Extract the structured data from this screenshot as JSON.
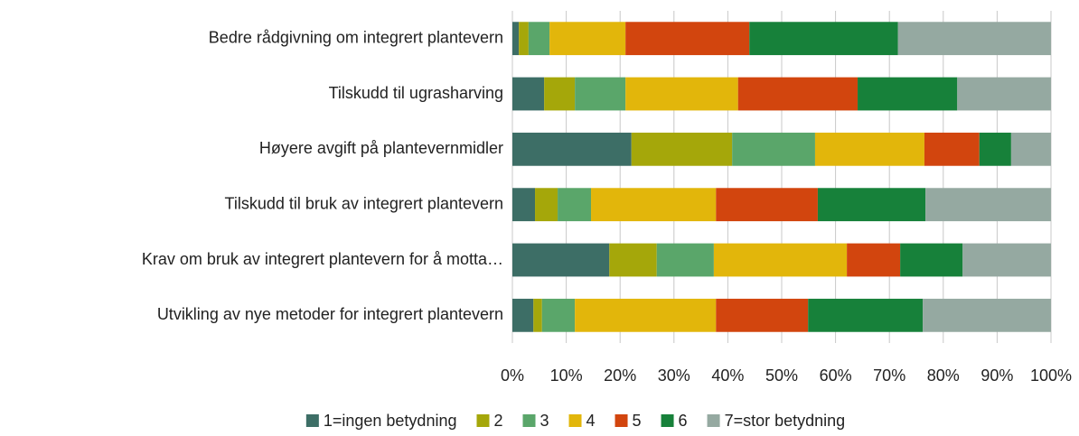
{
  "chart_data": {
    "type": "stacked-bar-horizontal",
    "categories": [
      "Bedre rådgivning om integrert plantevern",
      "Tilskudd til ugrasharving",
      "Høyere avgift på plantevernmidler",
      "Tilskudd til bruk av integrert plantevern",
      "Krav om bruk av integrert plantevern for å motta…",
      "Utvikling av nye metoder for integrert plantevern"
    ],
    "series": [
      {
        "name": "1=ingen betydning",
        "color": "#3d6e66",
        "values": [
          1.2,
          5.9,
          22.1,
          4.2,
          18.0,
          3.9
        ]
      },
      {
        "name": "2",
        "color": "#a5a70a",
        "values": [
          1.8,
          5.7,
          18.7,
          4.2,
          8.8,
          1.6
        ]
      },
      {
        "name": "3",
        "color": "#5aa66a",
        "values": [
          3.9,
          9.4,
          15.4,
          6.2,
          10.6,
          6.1
        ]
      },
      {
        "name": "4",
        "color": "#e2b60b",
        "values": [
          14.1,
          20.9,
          20.3,
          23.2,
          24.7,
          26.2
        ]
      },
      {
        "name": "5",
        "color": "#d2450e",
        "values": [
          23.0,
          22.2,
          10.2,
          18.9,
          9.9,
          17.1
        ]
      },
      {
        "name": "6",
        "color": "#17813a",
        "values": [
          27.6,
          18.5,
          5.9,
          20.0,
          11.6,
          21.3
        ]
      },
      {
        "name": "7=stor betydning",
        "color": "#95a9a1",
        "values": [
          28.4,
          17.4,
          7.4,
          23.3,
          16.4,
          23.8
        ]
      }
    ],
    "xlim": [
      0,
      100
    ],
    "xticks": [
      {
        "value": 0,
        "label": "0%"
      },
      {
        "value": 10,
        "label": "10%"
      },
      {
        "value": 20,
        "label": "20%"
      },
      {
        "value": 30,
        "label": "30%"
      },
      {
        "value": 40,
        "label": "40%"
      },
      {
        "value": 50,
        "label": "50%"
      },
      {
        "value": 60,
        "label": "60%"
      },
      {
        "value": 70,
        "label": "70%"
      },
      {
        "value": 80,
        "label": "80%"
      },
      {
        "value": 90,
        "label": "90%"
      },
      {
        "value": 100,
        "label": "100%"
      }
    ],
    "grid": true,
    "legend": "bottom"
  }
}
